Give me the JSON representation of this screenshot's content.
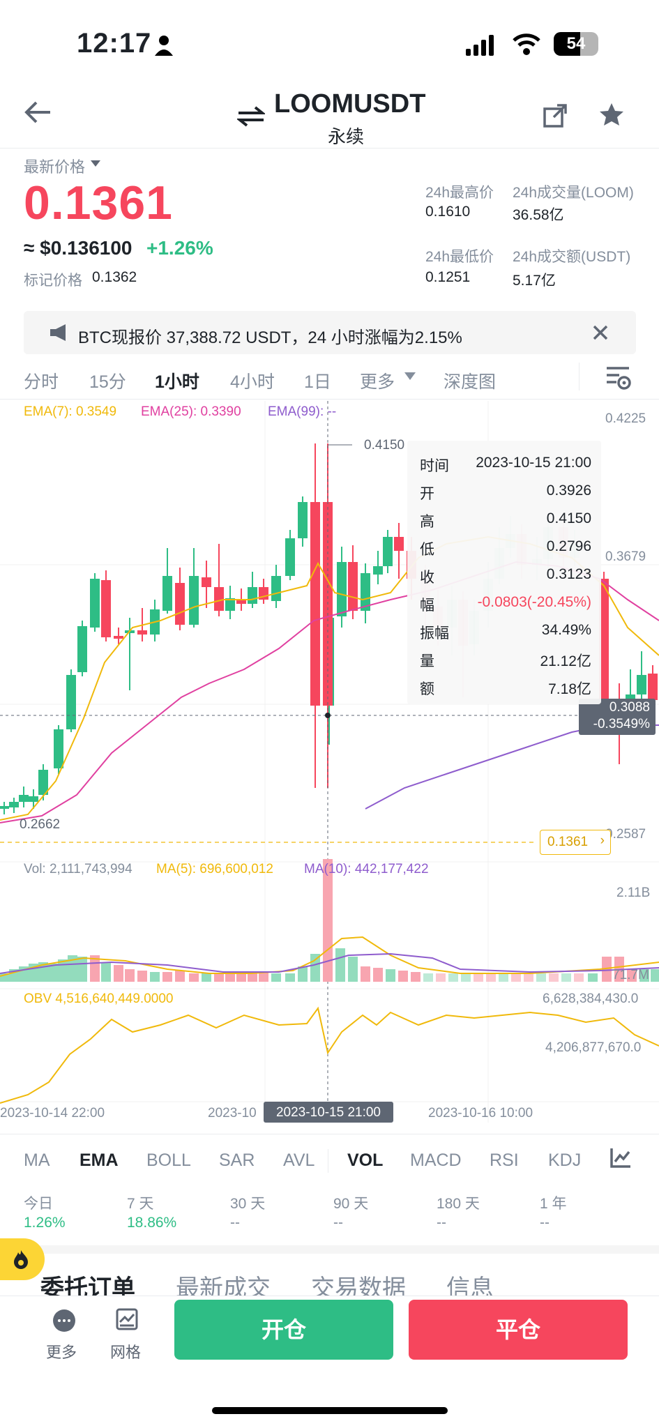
{
  "status_bar": {
    "time": "12:17",
    "battery": "54"
  },
  "header": {
    "symbol": "LOOMUSDT",
    "subtitle": "永续"
  },
  "price_panel": {
    "latest_label": "最新价格",
    "last_price": "0.1361",
    "usd_price": "≈ $0.136100",
    "change_pct": "+1.26%",
    "mark_label": "标记价格",
    "mark_price": "0.1362",
    "high_label": "24h最高价",
    "high_value": "0.1610",
    "vol_loom_label": "24h成交量(LOOM)",
    "vol_loom_value": "36.58亿",
    "low_label": "24h最低价",
    "low_value": "0.1251",
    "vol_usdt_label": "24h成交额(USDT)",
    "vol_usdt_value": "5.17亿"
  },
  "notice": {
    "text": "BTC现报价 37,388.72 USDT，24 小时涨幅为2.15%"
  },
  "timeframe_tabs": {
    "t1": "分时",
    "t2": "15分",
    "t3": "1小时",
    "t4": "4小时",
    "t5": "1日",
    "t6": "更多",
    "t7": "深度图"
  },
  "indicators": {
    "ema7": "EMA(7): 0.3549",
    "ema25": "EMA(25): 0.3390",
    "ema99": "EMA(99): --",
    "vol": "Vol: 2,111,743,994",
    "ma5": "MA(5): 696,600,012",
    "ma10": "MA(10): 442,177,422",
    "obv": "OBV 4,516,640,449.0000"
  },
  "axis": {
    "p1": "0.4225",
    "p2": "0.3679",
    "p3": "0.2587",
    "hi_mark": "0.4150",
    "lo_mark": "0.2662",
    "cross_price": "0.3088",
    "cross_pct": "-0.3549%",
    "last_tag": "0.1361",
    "vol_max": "2.11B",
    "vol_mid": "71.7M",
    "obv_max": "6,628,384,430.0",
    "obv_mid": "4,206,877,670.0",
    "d1": "2023-10-14 22:00",
    "d2": "2023-10",
    "d3": "2023-10-15 21:00",
    "d4": "2023-10-16 10:00"
  },
  "tooltip": {
    "time_k": "时间",
    "time_v": "2023-10-15 21:00",
    "open_k": "开",
    "open_v": "0.3926",
    "high_k": "高",
    "high_v": "0.4150",
    "low_k": "低",
    "low_v": "0.2796",
    "close_k": "收",
    "close_v": "0.3123",
    "chg_k": "幅",
    "chg_v": "-0.0803(-20.45%)",
    "amp_k": "振幅",
    "amp_v": "34.49%",
    "vol_k": "量",
    "vol_v": "21.12亿",
    "amt_k": "额",
    "amt_v": "7.18亿"
  },
  "indicator_tabs": {
    "i1": "MA",
    "i2": "EMA",
    "i3": "BOLL",
    "i4": "SAR",
    "i5": "AVL",
    "i6": "VOL",
    "i7": "MACD",
    "i8": "RSI",
    "i9": "KDJ"
  },
  "performance": {
    "today_label": "今日",
    "today_val": "1.26%",
    "d7_label": "7 天",
    "d7_val": "18.86%",
    "d30_label": "30 天",
    "d30_val": "--",
    "d90_label": "90 天",
    "d90_val": "--",
    "d180_label": "180 天",
    "d180_val": "--",
    "y1_label": "1 年",
    "y1_val": "--"
  },
  "section_tabs": {
    "s1": "委托订单",
    "s2": "最新成交",
    "s3": "交易数据",
    "s4": "信息"
  },
  "bottom": {
    "more": "更多",
    "grid": "网格",
    "open": "开仓",
    "close": "平仓"
  },
  "colors": {
    "up": "#2ebd85",
    "down": "#f6465d",
    "ema7": "#f0b90b",
    "ema25": "#e040a0",
    "ema99": "#8e5ccd"
  }
}
